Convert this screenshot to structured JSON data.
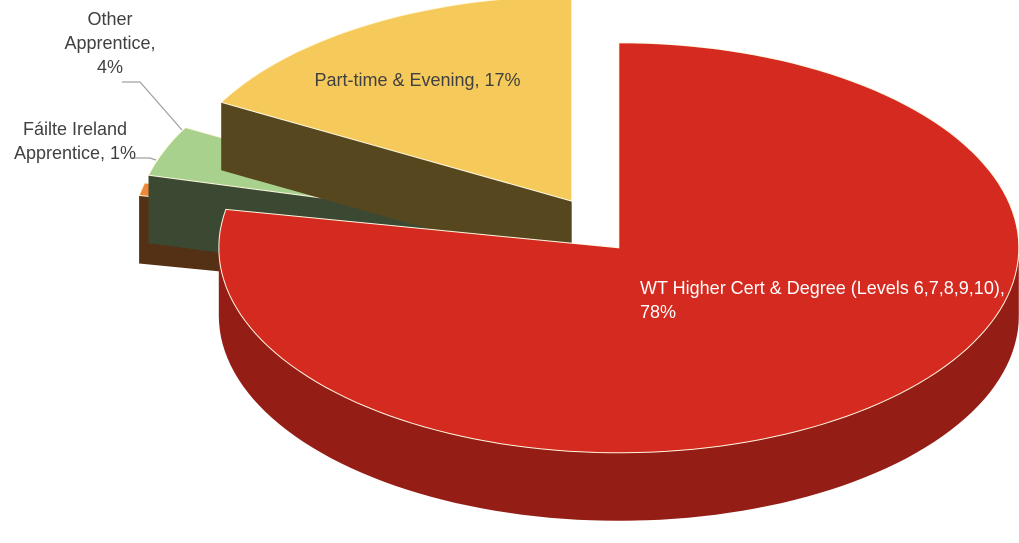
{
  "chart_data": {
    "type": "pie",
    "categories": [
      "WT Higher Cert & Degree (Levels 6,7,8,9,10),",
      "Fáilte Ireland Apprentice,",
      "Other Apprentice,",
      "Part-time & Evening,"
    ],
    "values": [
      78,
      1,
      4,
      17
    ],
    "value_labels": [
      "78%",
      "1%",
      "4%",
      "17%"
    ],
    "colors": [
      "#d42a20",
      "#f0883a",
      "#a9d18e",
      "#f6ca5a"
    ]
  }
}
